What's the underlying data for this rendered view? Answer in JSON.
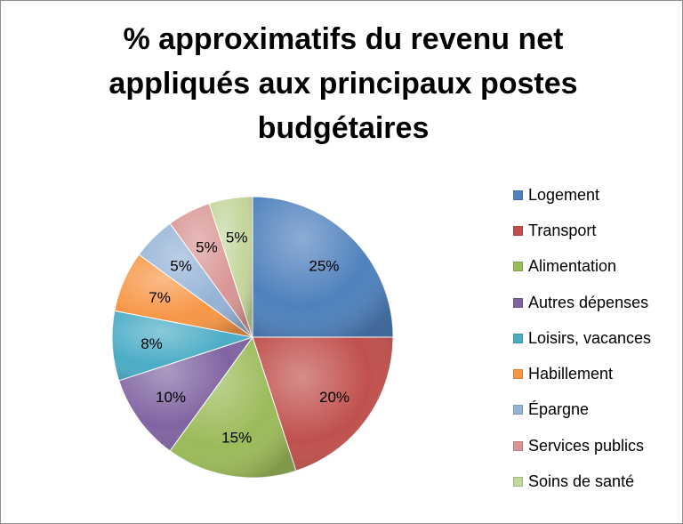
{
  "chart_data": {
    "type": "pie",
    "title_lines": [
      "% approximatifs du revenu net",
      "appliqués aux principaux postes",
      "budgétaires"
    ],
    "legend_position": "right",
    "slices": [
      {
        "label": "Logement",
        "value": 25,
        "value_label": "25%",
        "color": "#4f81bd"
      },
      {
        "label": "Transport",
        "value": 20,
        "value_label": "20%",
        "color": "#c0504d"
      },
      {
        "label": "Alimentation",
        "value": 15,
        "value_label": "15%",
        "color": "#9bbb59"
      },
      {
        "label": "Autres dépenses",
        "value": 10,
        "value_label": "10%",
        "color": "#8064a2"
      },
      {
        "label": "Loisirs, vacances",
        "value": 8,
        "value_label": "8%",
        "color": "#4bacc6"
      },
      {
        "label": "Habillement",
        "value": 7,
        "value_label": "7%",
        "color": "#f79646"
      },
      {
        "label": "Épargne",
        "value": 5,
        "value_label": "5%",
        "color": "#95b3d7"
      },
      {
        "label": "Services publics",
        "value": 5,
        "value_label": "5%",
        "color": "#d99694"
      },
      {
        "label": "Soins de santé",
        "value": 5,
        "value_label": "5%",
        "color": "#c3d69b"
      }
    ]
  }
}
